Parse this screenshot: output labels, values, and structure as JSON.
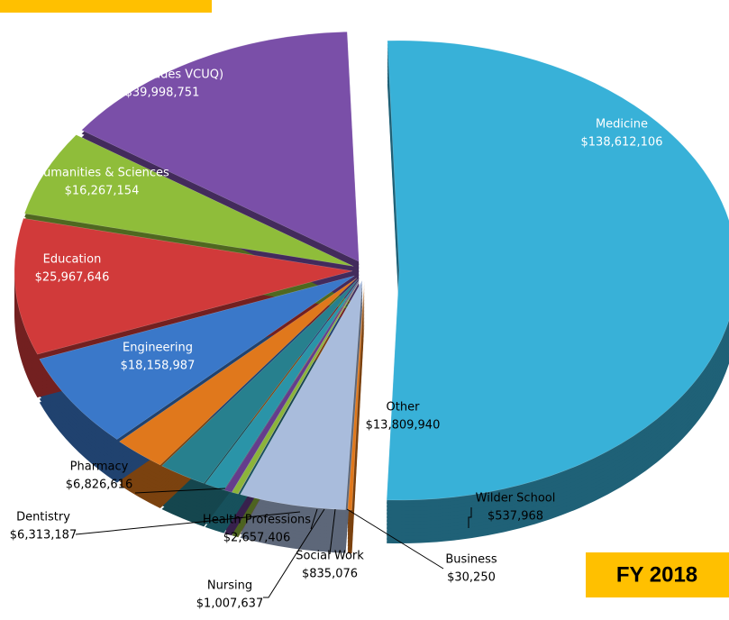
{
  "chart_data": {
    "type": "pie",
    "annotation": "FY 2018",
    "categories": [
      "Medicine",
      "Wilder School",
      "Other",
      "Business",
      "Social Work",
      "Nursing",
      "Health Professions",
      "Dentistry",
      "Pharmacy",
      "Engineering",
      "Education",
      "Humanities & Sciences",
      "Arts (includes VCUQ)"
    ],
    "values": [
      138612106,
      537968,
      13809940,
      30250,
      835076,
      1007637,
      2657406,
      6313187,
      6826616,
      18158987,
      25967646,
      16267154,
      39998751
    ],
    "value_labels": [
      "$138,612,106",
      "$537,968",
      "$13,809,940",
      "$30,250",
      "$835,076",
      "$1,007,637",
      "$2,657,406",
      "$6,313,187",
      "$6,826,616",
      "$18,158,987",
      "$25,967,646",
      "$16,267,154",
      "$39,998,751"
    ],
    "colors": [
      "#38b1d8",
      "#e0781c",
      "#a9bcdc",
      "#c0392b",
      "#8cb43a",
      "#653c8c",
      "#2a94a8",
      "#27808e",
      "#e0781c",
      "#3a78c9",
      "#d13a3a",
      "#8fbd3a",
      "#7a4fa8"
    ]
  }
}
